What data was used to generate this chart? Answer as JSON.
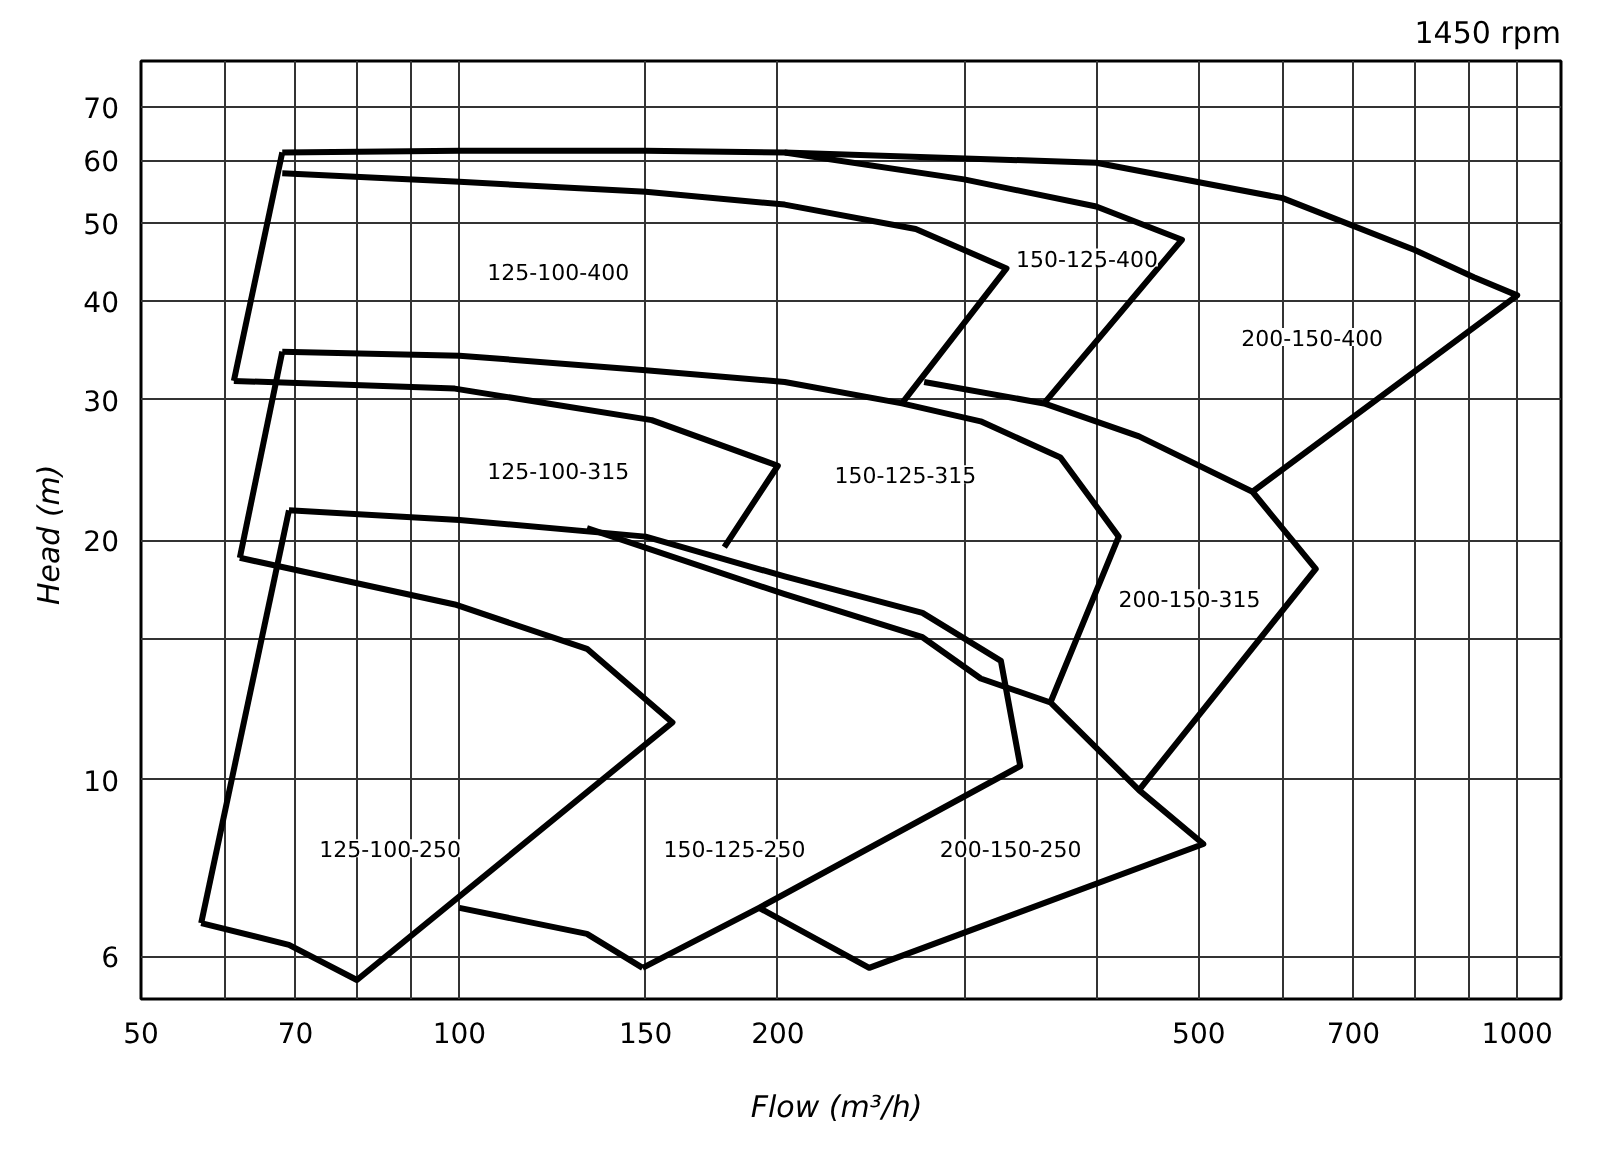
{
  "chart_data": {
    "type": "line",
    "title": "1450 rpm",
    "xlabel": "Flow    (m³/h)",
    "ylabel": "Head  (m)",
    "log": "xy",
    "grid": true,
    "line_style": "solid",
    "xlim": [
      50,
      1100
    ],
    "ylim": [
      5.3,
      80
    ],
    "xticks": [
      50,
      {
        "value": 60,
        "label": null
      },
      70,
      {
        "value": 80,
        "label": null
      },
      {
        "value": 90,
        "label": null
      },
      100,
      150,
      200,
      {
        "value": 300,
        "label": null
      },
      {
        "value": 400,
        "label": null
      },
      500,
      {
        "value": 600,
        "label": null
      },
      700,
      {
        "value": 800,
        "label": null
      },
      {
        "value": 900,
        "label": null
      },
      1000
    ],
    "yticks": [
      6,
      10,
      {
        "value": 15,
        "label": null
      },
      20,
      30,
      40,
      50,
      60,
      70
    ],
    "series": [
      {
        "color": "#000000",
        "x": [
          57,
          69
        ],
        "values": [
          6.6,
          21.8
        ]
      },
      {
        "color": "#000000",
        "x": [
          69,
          100,
          150,
          203,
          274,
          325,
          339,
          192,
          149
        ],
        "values": [
          21.8,
          21.2,
          20.2,
          18.0,
          16.2,
          14.1,
          10.4,
          6.9,
          5.8
        ]
      },
      {
        "color": "#000000",
        "x": [
          62,
          99,
          132,
          159,
          80,
          69,
          57
        ],
        "values": [
          19.0,
          16.6,
          14.6,
          11.8,
          5.6,
          6.2,
          6.6
        ]
      },
      {
        "color": "#000000",
        "x": [
          100,
          132,
          149
        ],
        "values": [
          6.9,
          6.4,
          5.8
        ]
      },
      {
        "color": "#000000",
        "x": [
          192,
          244,
          505,
          439,
          362,
          311,
          274,
          203,
          132
        ],
        "values": [
          6.9,
          5.8,
          8.3,
          9.7,
          12.5,
          13.4,
          15.1,
          17.1,
          20.7
        ]
      },
      {
        "color": "#000000",
        "x": [
          62,
          68
        ],
        "values": [
          19.0,
          34.5
        ]
      },
      {
        "color": "#000000",
        "x": [
          61.2,
          99,
          152,
          200,
          178
        ],
        "values": [
          31.7,
          31.0,
          28.3,
          24.8,
          19.6
        ]
      },
      {
        "color": "#000000",
        "x": [
          68,
          100,
          150,
          203,
          262,
          311,
          370,
          420,
          362
        ],
        "values": [
          34.5,
          34.1,
          32.7,
          31.6,
          29.7,
          28.2,
          25.4,
          20.2,
          12.5
        ]
      },
      {
        "color": "#000000",
        "x": [
          275,
          357,
          439,
          562,
          645,
          439
        ],
        "values": [
          31.6,
          29.7,
          27.0,
          23.0,
          18.4,
          9.7
        ]
      },
      {
        "color": "#000000",
        "x": [
          61.2,
          68
        ],
        "values": [
          31.7,
          61.4
        ]
      },
      {
        "color": "#000000",
        "x": [
          68,
          100,
          150,
          203,
          270,
          329,
          262
        ],
        "values": [
          57.8,
          56.4,
          54.8,
          52.8,
          49.2,
          43.9,
          29.7
        ]
      },
      {
        "color": "#000000",
        "x": [
          68,
          100,
          150,
          203,
          300,
          400,
          482,
          357
        ],
        "values": [
          61.4,
          61.7,
          61.7,
          61.4,
          56.8,
          52.5,
          47.7,
          29.7
        ]
      },
      {
        "color": "#000000",
        "x": [
          203,
          400,
          600,
          800,
          910,
          1000,
          562
        ],
        "values": [
          61.4,
          59.6,
          53.8,
          46.3,
          42.8,
          40.6,
          23.0
        ]
      }
    ],
    "annotations": [
      "125-100-400",
      "150-125-400",
      "200-150-400",
      "125-100-315",
      "150-125-315",
      "200-150-315",
      "125-100-250",
      "150-125-250",
      "200-150-250"
    ]
  }
}
